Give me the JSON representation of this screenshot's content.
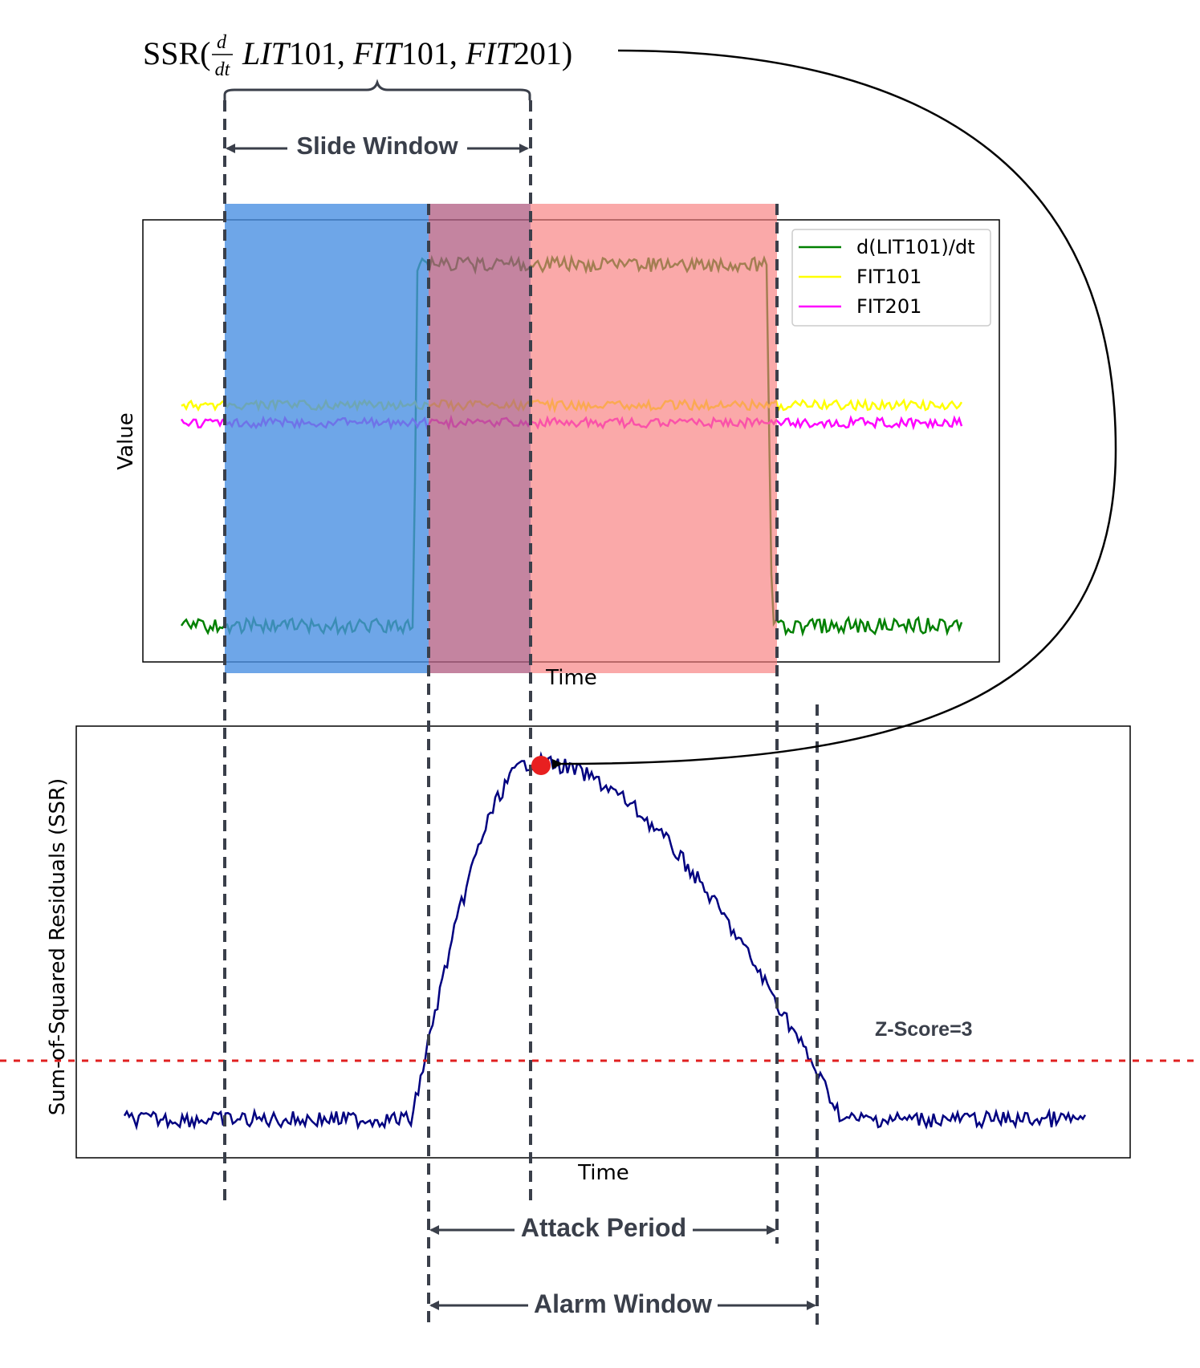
{
  "formula": {
    "prefix": "SSR(",
    "frac_num": "d",
    "frac_den": "dt",
    "var1": "LIT",
    "num1": "101, ",
    "var2": "FIT",
    "num2": "101, ",
    "var3": "FIT",
    "num3": "201)"
  },
  "slide_window_label": "Slide Window",
  "top_chart": {
    "ylabel": "Value",
    "xlabel": "Time",
    "legend": [
      {
        "label": "d(LIT101)/dt",
        "color": "#008000"
      },
      {
        "label": "FIT101",
        "color": "#ffff00"
      },
      {
        "label": "FIT201",
        "color": "#ff00ff"
      }
    ],
    "colors": {
      "window": "#4a90e2",
      "attack": "#f87c7c"
    }
  },
  "bottom_chart": {
    "ylabel": "Sum-of-Squared Residuals (SSR)",
    "xlabel": "Time",
    "threshold_label": "Z-Score=3",
    "line_color": "#000080",
    "threshold_color": "#e02020",
    "marker_color": "#e82020"
  },
  "attack_period_label": "Attack Period",
  "alarm_window_label": "Alarm Window"
}
